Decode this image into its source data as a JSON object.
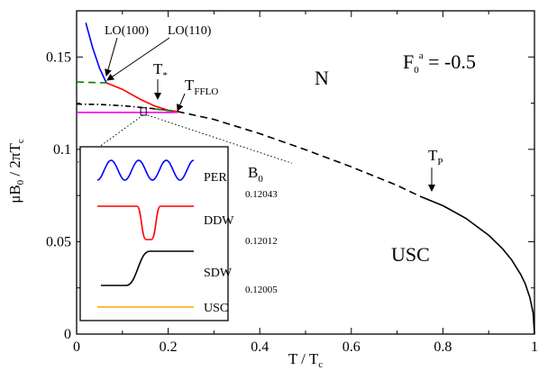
{
  "chart_data": {
    "type": "line",
    "xlabel": "T / T",
    "xlabel_sub": "c",
    "ylabel": "μB",
    "ylabel_sub0": "0",
    "ylabel_mid": " / 2πT",
    "ylabel_sub1": "c",
    "xlim": [
      0,
      1
    ],
    "ylim": [
      0,
      0.175
    ],
    "x_ticks": [
      0,
      0.2,
      0.4,
      0.6,
      0.8,
      1
    ],
    "x_tick_labels": [
      "0",
      "0.2",
      "0.4",
      "0.6",
      "0.8",
      "1"
    ],
    "y_ticks": [
      0,
      0.05,
      0.1,
      0.15
    ],
    "y_tick_labels": [
      "0",
      "0.05",
      "0.1",
      "0.15"
    ],
    "grid": false,
    "series": [
      {
        "id": "usc_boundary",
        "color": "#000000",
        "style": "solid",
        "x": [
          0.75,
          0.8,
          0.85,
          0.9,
          0.93,
          0.95,
          0.97,
          0.98,
          0.99,
          0.997,
          1.0
        ],
        "y": [
          0.0746,
          0.0695,
          0.0627,
          0.0535,
          0.0463,
          0.0402,
          0.0322,
          0.0272,
          0.0198,
          0.0115,
          0.0
        ]
      },
      {
        "id": "n_boundary_dashed",
        "color": "#000000",
        "style": "dashed",
        "x": [
          0.22,
          0.3,
          0.4,
          0.5,
          0.6,
          0.7,
          0.75
        ],
        "y": [
          0.1205,
          0.1162,
          0.1085,
          0.0998,
          0.0905,
          0.0805,
          0.0746
        ]
      },
      {
        "id": "dash_dot_upper",
        "color": "#000000",
        "style": "dashdot",
        "x": [
          0.0,
          0.05,
          0.1,
          0.15,
          0.2
        ],
        "y": [
          0.1245,
          0.1243,
          0.1236,
          0.1225,
          0.1212
        ]
      },
      {
        "id": "LO100",
        "color": "#0000ff",
        "style": "solid",
        "x": [
          0.02,
          0.035,
          0.05,
          0.065
        ],
        "y": [
          0.1685,
          0.155,
          0.144,
          0.136
        ]
      },
      {
        "id": "LO110",
        "color": "#ff0000",
        "style": "solid",
        "x": [
          0.065,
          0.1,
          0.14,
          0.17,
          0.2,
          0.22
        ],
        "y": [
          0.136,
          0.1325,
          0.127,
          0.1235,
          0.1212,
          0.1205
        ]
      },
      {
        "id": "green_dashed",
        "color": "#008000",
        "style": "dashed",
        "x": [
          0.0,
          0.03,
          0.065
        ],
        "y": [
          0.1365,
          0.1362,
          0.136
        ]
      },
      {
        "id": "green_dashed_lower",
        "color": "#008000",
        "style": "dashed",
        "x": [
          0.17,
          0.2,
          0.22
        ],
        "y": [
          0.1218,
          0.121,
          0.1205
        ]
      },
      {
        "id": "magenta",
        "color": "#ff00ff",
        "style": "solid",
        "x": [
          0.0,
          0.05,
          0.1,
          0.15,
          0.2,
          0.22
        ],
        "y": [
          0.12,
          0.12,
          0.12,
          0.12,
          0.12,
          0.12
        ]
      },
      {
        "id": "zoom_line_1",
        "color": "#000000",
        "style": "dotted",
        "x": [
          0.145,
          0.0
        ],
        "y": [
          0.1185,
          0.0925
        ]
      },
      {
        "id": "zoom_line_2",
        "color": "#000000",
        "style": "dotted",
        "x": [
          0.155,
          0.47
        ],
        "y": [
          0.1185,
          0.0925
        ]
      }
    ],
    "rect_box": {
      "x": [
        0.14,
        0.152
      ],
      "y": [
        0.1185,
        0.1225
      ]
    },
    "annotations": {
      "n": "N",
      "usc": "USC",
      "f0a": "F",
      "f0a_sub": "0",
      "f0a_sup": "a",
      "f0a_val": " = -0.5",
      "lo100": "LO(100)",
      "lo110": "LO(110)",
      "t_star": "T",
      "t_star_sub": "*",
      "t_fflo": "T",
      "t_fflo_sub": "FFLO",
      "tp": "T",
      "tp_sub": "P"
    },
    "inset": {
      "legend_title": "B",
      "legend_title_sub": "0",
      "entries": [
        {
          "label": "PER",
          "value": "0.12043",
          "color": "#0000ff",
          "shape": "wave"
        },
        {
          "label": "DDW",
          "value": "0.12012",
          "color": "#ff0000",
          "shape": "dip"
        },
        {
          "label": "SDW",
          "value": "0.12005",
          "color": "#000000",
          "shape": "step"
        },
        {
          "label": "USC",
          "value": "",
          "color": "#ffa500",
          "shape": "flat"
        }
      ]
    }
  }
}
